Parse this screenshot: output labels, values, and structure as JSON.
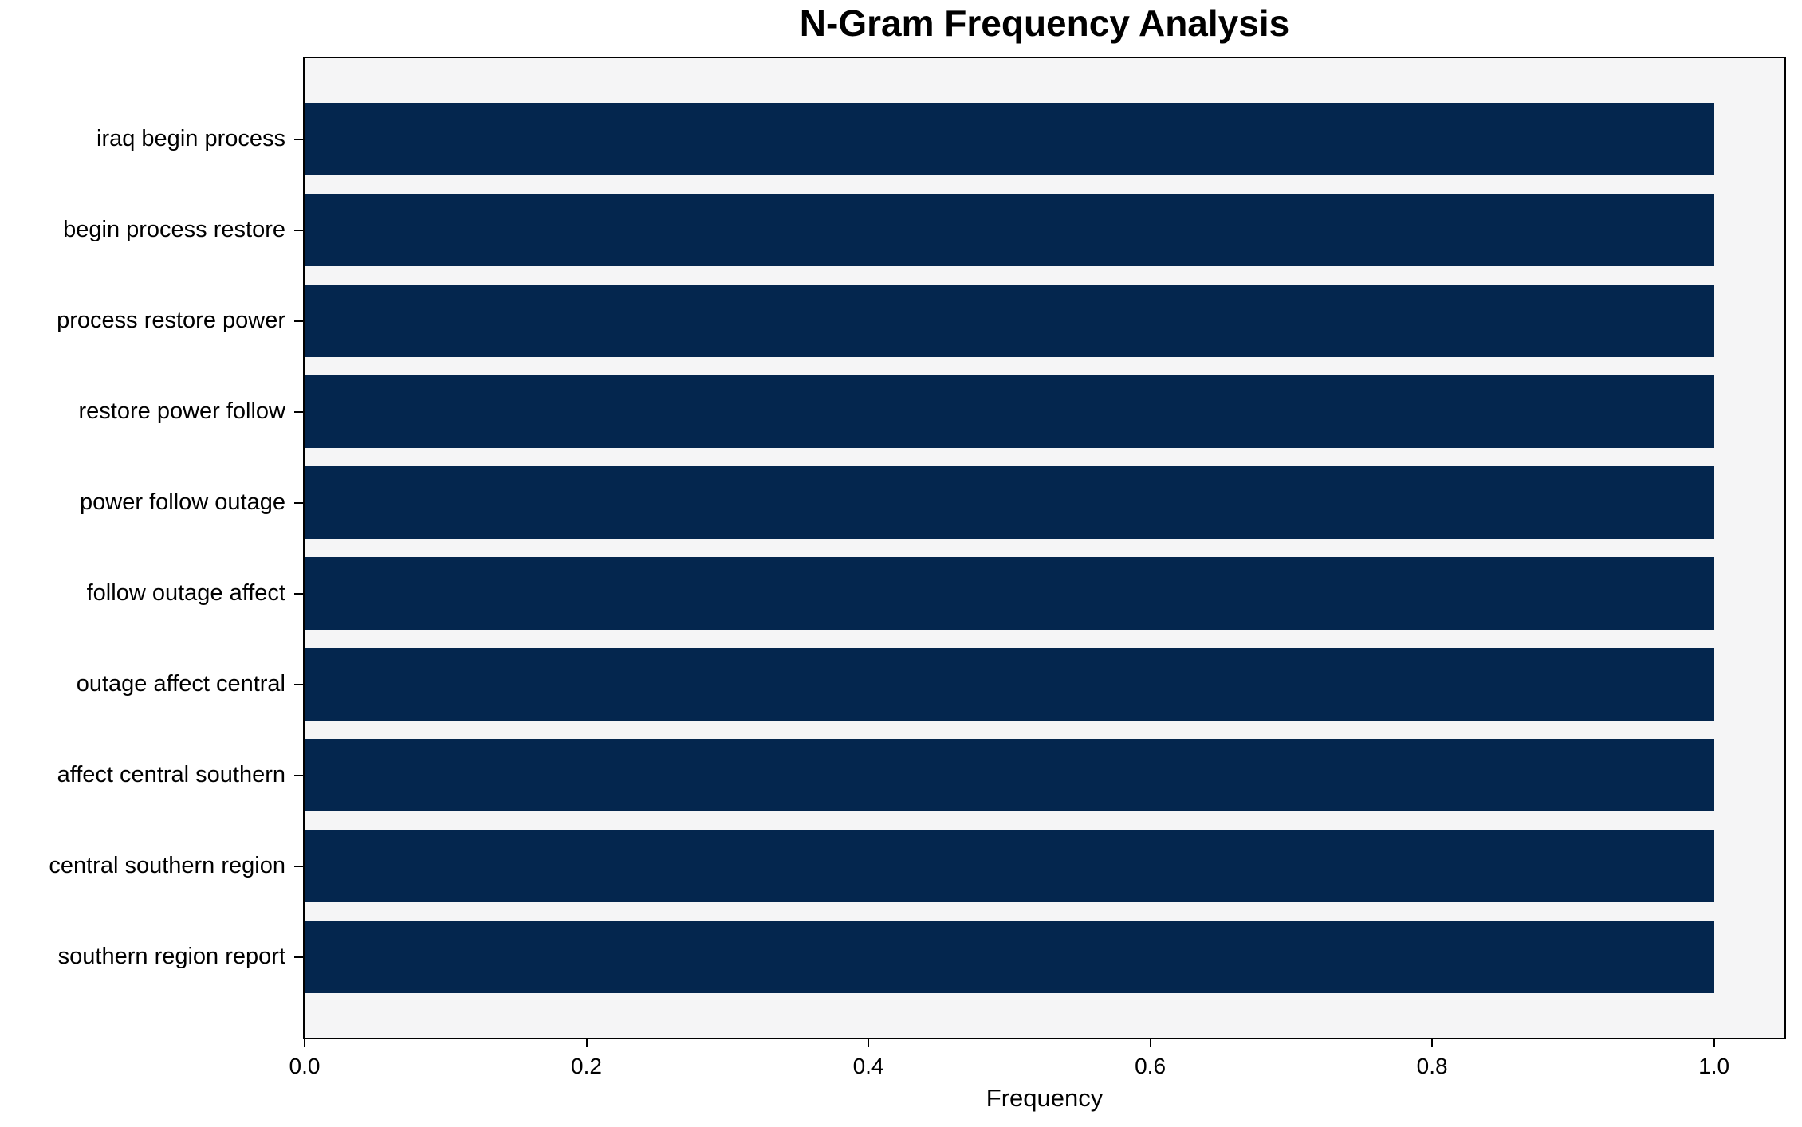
{
  "chart_data": {
    "type": "bar",
    "orientation": "horizontal",
    "title": "N-Gram Frequency Analysis",
    "xlabel": "Frequency",
    "ylabel": "",
    "categories": [
      "iraq begin process",
      "begin process restore",
      "process restore power",
      "restore power follow",
      "power follow outage",
      "follow outage affect",
      "outage affect central",
      "affect central southern",
      "central southern region",
      "southern region report"
    ],
    "values": [
      1.0,
      1.0,
      1.0,
      1.0,
      1.0,
      1.0,
      1.0,
      1.0,
      1.0,
      1.0
    ],
    "xlim": [
      0,
      1.05
    ],
    "x_tick_values": [
      0.0,
      0.2,
      0.4,
      0.6,
      0.8,
      1.0
    ],
    "x_tick_labels": [
      "0.0",
      "0.2",
      "0.4",
      "0.6",
      "0.8",
      "1.0"
    ],
    "grid": false,
    "legend": null,
    "bar_color": "#04264e",
    "plot_bg_color": "#f5f5f6",
    "figure_bg_color": "#ffffff",
    "spine_color": "#000000"
  }
}
